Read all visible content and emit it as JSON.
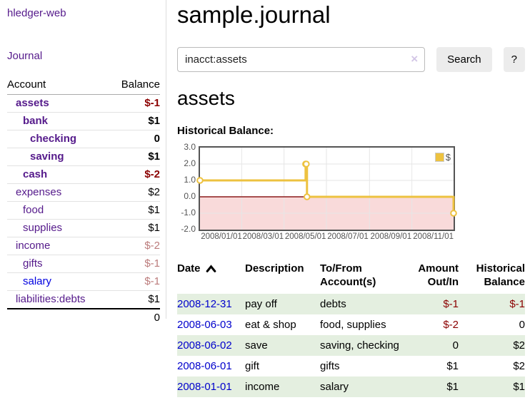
{
  "sidebar": {
    "brand": "hledger-web",
    "nav": {
      "journal": "Journal"
    },
    "accounts_table": {
      "headers": {
        "account": "Account",
        "balance": "Balance"
      },
      "rows": [
        {
          "name": "assets",
          "balance": "$-1"
        },
        {
          "name": "bank",
          "balance": "$1"
        },
        {
          "name": "checking",
          "balance": "0"
        },
        {
          "name": "saving",
          "balance": "$1"
        },
        {
          "name": "cash",
          "balance": "$-2"
        },
        {
          "name": "expenses",
          "balance": "$2"
        },
        {
          "name": "food",
          "balance": "$1"
        },
        {
          "name": "supplies",
          "balance": "$1"
        },
        {
          "name": "income",
          "balance": "$-2"
        },
        {
          "name": "gifts",
          "balance": "$-1"
        },
        {
          "name": "salary",
          "balance": "$-1"
        },
        {
          "name": "liabilities:debts",
          "balance": "$1"
        }
      ],
      "total": "0"
    }
  },
  "header": {
    "title": "sample.journal"
  },
  "search": {
    "value": "inacct:assets",
    "clear_icon": "×",
    "button": "Search",
    "help_button": "?"
  },
  "account_page": {
    "heading": "assets",
    "chart_label": "Historical Balance:"
  },
  "chart_data": {
    "type": "line",
    "step": true,
    "title": "Historical Balance:",
    "series": [
      {
        "name": "$",
        "color": "#edc240",
        "points": [
          [
            "2008-01-01",
            1
          ],
          [
            "2008-06-01",
            2
          ],
          [
            "2008-06-02",
            2
          ],
          [
            "2008-06-03",
            0
          ],
          [
            "2008-12-31",
            -1
          ]
        ]
      }
    ],
    "x_range": [
      "2008-01-01",
      "2008-12-31"
    ],
    "x_tick_dates": [
      "2008-01-01",
      "2008-03-01",
      "2008-05-01",
      "2008-07-01",
      "2008-09-01",
      "2008-11-01"
    ],
    "x_tick_labels": [
      "2008/01/01",
      "2008/03/01",
      "2008/05/01",
      "2008/07/01",
      "2008/09/01",
      "2008/11/01"
    ],
    "y_ticks": [
      3,
      2,
      1,
      0,
      -1,
      -2
    ],
    "y_tick_labels": [
      "3.0",
      "2.0",
      "1.0",
      "0.0",
      "-1.0",
      "-2.0"
    ],
    "ylim": [
      -2,
      3
    ],
    "legend": {
      "label": "$",
      "position": "top-right"
    },
    "grid": true,
    "grid_color": "#e6e6e6",
    "zero_line_color": "#8b1a1a",
    "negative_region_fill": "#f9dada",
    "marker_fill": "#ffffff"
  },
  "register_table": {
    "headers": {
      "date": "Date",
      "description": "Description",
      "accounts": "To/From Account(s)",
      "amount": "Amount Out/In",
      "balance": "Historical Balance"
    },
    "rows": [
      {
        "date": "2008-12-31",
        "description": "pay off",
        "accounts": "debts",
        "amount": "$-1",
        "balance": "$-1"
      },
      {
        "date": "2008-06-03",
        "description": "eat & shop",
        "accounts": "food, supplies",
        "amount": "$-2",
        "balance": "0"
      },
      {
        "date": "2008-06-02",
        "description": "save",
        "accounts": "saving, checking",
        "amount": "0",
        "balance": "$2"
      },
      {
        "date": "2008-06-01",
        "description": "gift",
        "accounts": "gifts",
        "amount": "$1",
        "balance": "$2"
      },
      {
        "date": "2008-01-01",
        "description": "income",
        "accounts": "salary",
        "amount": "$1",
        "balance": "$1"
      }
    ]
  },
  "colors": {
    "link_purple": "#551a8b",
    "link_blue": "#0000e0",
    "date_link_blue": "#0000cc",
    "negative_strong": "#8b0000",
    "negative_muted": "#bb7b7b",
    "row_green": "#e4efe0",
    "series_gold": "#edc240"
  }
}
